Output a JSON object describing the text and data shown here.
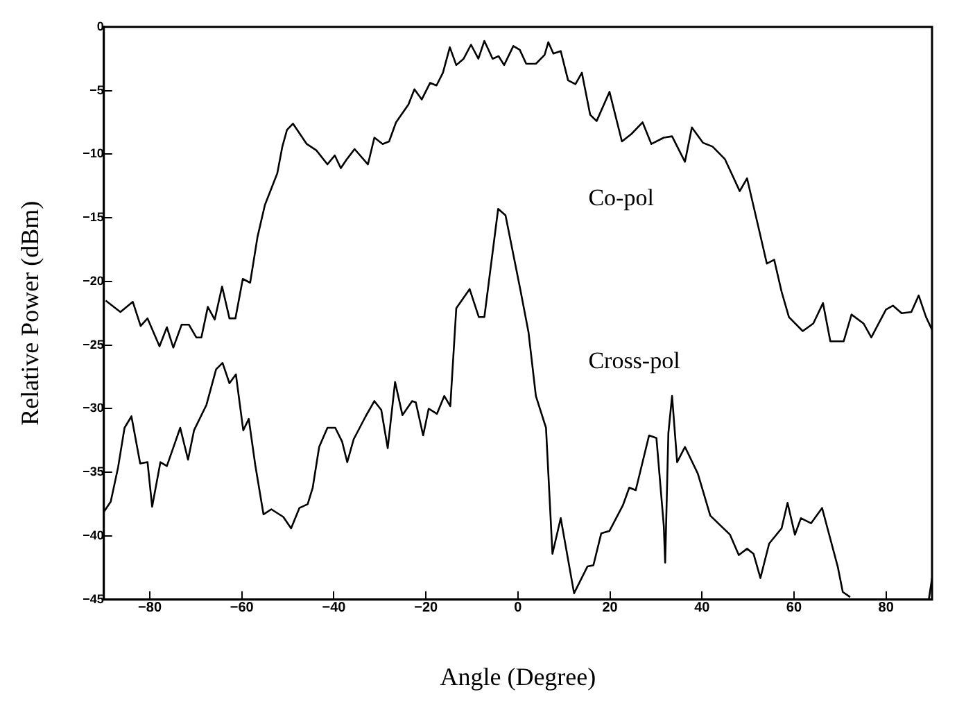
{
  "chart_data": {
    "type": "line",
    "xlabel": "Angle (Degree)",
    "ylabel": "Relative Power (dBm)",
    "xlim": [
      -90,
      90
    ],
    "ylim": [
      -45,
      0
    ],
    "xticks": [
      -80,
      -60,
      -40,
      -20,
      0,
      20,
      40,
      60,
      80
    ],
    "yticks": [
      0,
      -5,
      -10,
      -15,
      -20,
      -25,
      -30,
      -35,
      -40,
      -45
    ],
    "grid": false,
    "legend": false,
    "marker": "none",
    "line_style": "solid",
    "series": [
      {
        "name": "Co-pol",
        "color": "#000000",
        "x": [
          -89.6,
          -86.4,
          -83.7,
          -82,
          -80.5,
          -77.9,
          -76.3,
          -74.9,
          -73.1,
          -71.5,
          -69.9,
          -68.8,
          -67.4,
          -65.9,
          -64.3,
          -62.7,
          -61.4,
          -59.8,
          -58.2,
          -56.6,
          -55,
          -52.3,
          -51.2,
          -50.2,
          -48.9,
          -45.9,
          -43.8,
          -41.4,
          -39.8,
          -38.5,
          -37.2,
          -35.5,
          -32.6,
          -31.2,
          -29.4,
          -28,
          -26.5,
          -23.8,
          -22.5,
          -20.9,
          -19.1,
          -17.7,
          -16.3,
          -14.8,
          -13.4,
          -11.8,
          -10.2,
          -8.6,
          -7.3,
          -5.5,
          -4.2,
          -3,
          -1,
          0.4,
          1.8,
          3.9,
          5.8,
          6.6,
          7.7,
          9.3,
          10.9,
          12.5,
          13.9,
          15.7,
          17.1,
          19.9,
          22.6,
          24.7,
          27.1,
          29,
          31.7,
          33.5,
          36.3,
          37.8,
          40.2,
          42.3,
          45,
          48.2,
          49.8,
          52.5,
          54.1,
          55.7,
          57.3,
          58.9,
          61.9,
          64.2,
          66.3,
          67.9,
          70.8,
          72.5,
          75.1,
          76.8,
          80,
          81.5,
          83.4,
          85.5,
          87.1,
          88.7,
          90
        ],
        "values": [
          -21.5,
          -22.4,
          -21.6,
          -23.5,
          -22.9,
          -25.1,
          -23.6,
          -25.2,
          -23.4,
          -23.4,
          -24.4,
          -24.4,
          -22,
          -23,
          -20.4,
          -22.9,
          -22.9,
          -19.8,
          -20.1,
          -16.5,
          -14,
          -11.5,
          -9.4,
          -8.1,
          -7.6,
          -9.2,
          -9.7,
          -10.8,
          -10.1,
          -11.1,
          -10.4,
          -9.6,
          -10.8,
          -8.7,
          -9.2,
          -9,
          -7.5,
          -6.1,
          -4.9,
          -5.7,
          -4.4,
          -4.6,
          -3.6,
          -1.6,
          -3,
          -2.5,
          -1.4,
          -2.5,
          -1.1,
          -2.5,
          -2.3,
          -3,
          -1.5,
          -1.8,
          -2.9,
          -2.9,
          -2.2,
          -1.2,
          -2.1,
          -1.9,
          -4.2,
          -4.5,
          -3.6,
          -6.9,
          -7.4,
          -5.1,
          -9,
          -8.4,
          -7.5,
          -9.2,
          -8.7,
          -8.6,
          -10.6,
          -7.9,
          -9.1,
          -9.4,
          -10.4,
          -12.9,
          -11.9,
          -16.1,
          -18.6,
          -18.3,
          -20.8,
          -22.8,
          -23.9,
          -23.3,
          -21.7,
          -24.7,
          -24.7,
          -22.6,
          -23.3,
          -24.4,
          -22.2,
          -21.9,
          -22.5,
          -22.4,
          -21.1,
          -22.8,
          -23.8
        ]
      },
      {
        "name": "Cross-pol",
        "color": "#000000",
        "x": [
          -90,
          -88.5,
          -86.9,
          -85.5,
          -84,
          -82.1,
          -80.5,
          -79.5,
          -77.7,
          -76.3,
          -73.4,
          -71.7,
          -70.4,
          -67.7,
          -65.6,
          -64.2,
          -62.7,
          -61.3,
          -59.7,
          -58.5,
          -57.1,
          -55.3,
          -53.6,
          -51,
          -49.3,
          -47.5,
          -45.7,
          -44.6,
          -43.2,
          -41.4,
          -39.7,
          -38.2,
          -37.1,
          -35.7,
          -33.1,
          -31.2,
          -29.7,
          -28.3,
          -26.7,
          -25.1,
          -23,
          -22.2,
          -20.6,
          -19.4,
          -17.6,
          -16,
          -14.7,
          -13.4,
          -10.5,
          -8.5,
          -7.3,
          -4.3,
          -2.7,
          0.5,
          2.3,
          3.9,
          6.1,
          7.5,
          9.3,
          12.2,
          15.1,
          16.4,
          18.1,
          19.9,
          22.8,
          24.2,
          25.6,
          28.5,
          30.1,
          31.7,
          32,
          32.7,
          33.5,
          34.6,
          36.3,
          39.1,
          41.8,
          46.1,
          48,
          49.8,
          51.2,
          52.7,
          54.6,
          57.3,
          58.6,
          60.2,
          61.5,
          63.7,
          66.1,
          69.5,
          70.6,
          72.2,
          80,
          89.3,
          90
        ],
        "values": [
          -38.1,
          -37.3,
          -34.6,
          -31.5,
          -30.6,
          -34.3,
          -34.2,
          -37.7,
          -34.2,
          -34.5,
          -31.5,
          -34,
          -31.7,
          -29.7,
          -26.9,
          -26.4,
          -28,
          -27.3,
          -31.7,
          -30.8,
          -34.4,
          -38.3,
          -37.9,
          -38.5,
          -39.4,
          -37.8,
          -37.5,
          -36.2,
          -33,
          -31.5,
          -31.5,
          -32.6,
          -34.2,
          -32.4,
          -30.6,
          -29.4,
          -30.1,
          -33.1,
          -27.9,
          -30.5,
          -29.4,
          -29.5,
          -32.1,
          -30,
          -30.4,
          -29,
          -29.8,
          -22.1,
          -20.6,
          -22.8,
          -22.8,
          -14.3,
          -14.8,
          -20.6,
          -24,
          -29,
          -31.5,
          -41.4,
          -38.6,
          -44.5,
          -42.4,
          -42.3,
          -39.8,
          -39.6,
          -37.6,
          -36.2,
          -36.4,
          -32.1,
          -32.3,
          -39.2,
          -42.1,
          -31.9,
          -29,
          -34.2,
          -33,
          -35.1,
          -38.4,
          -39.9,
          -41.5,
          -41,
          -41.4,
          -43.3,
          -40.6,
          -39.4,
          -37.4,
          -39.9,
          -38.6,
          -39,
          -37.8,
          -42.4,
          -44.4,
          -44.8,
          null,
          -45,
          -43.3
        ]
      }
    ]
  }
}
